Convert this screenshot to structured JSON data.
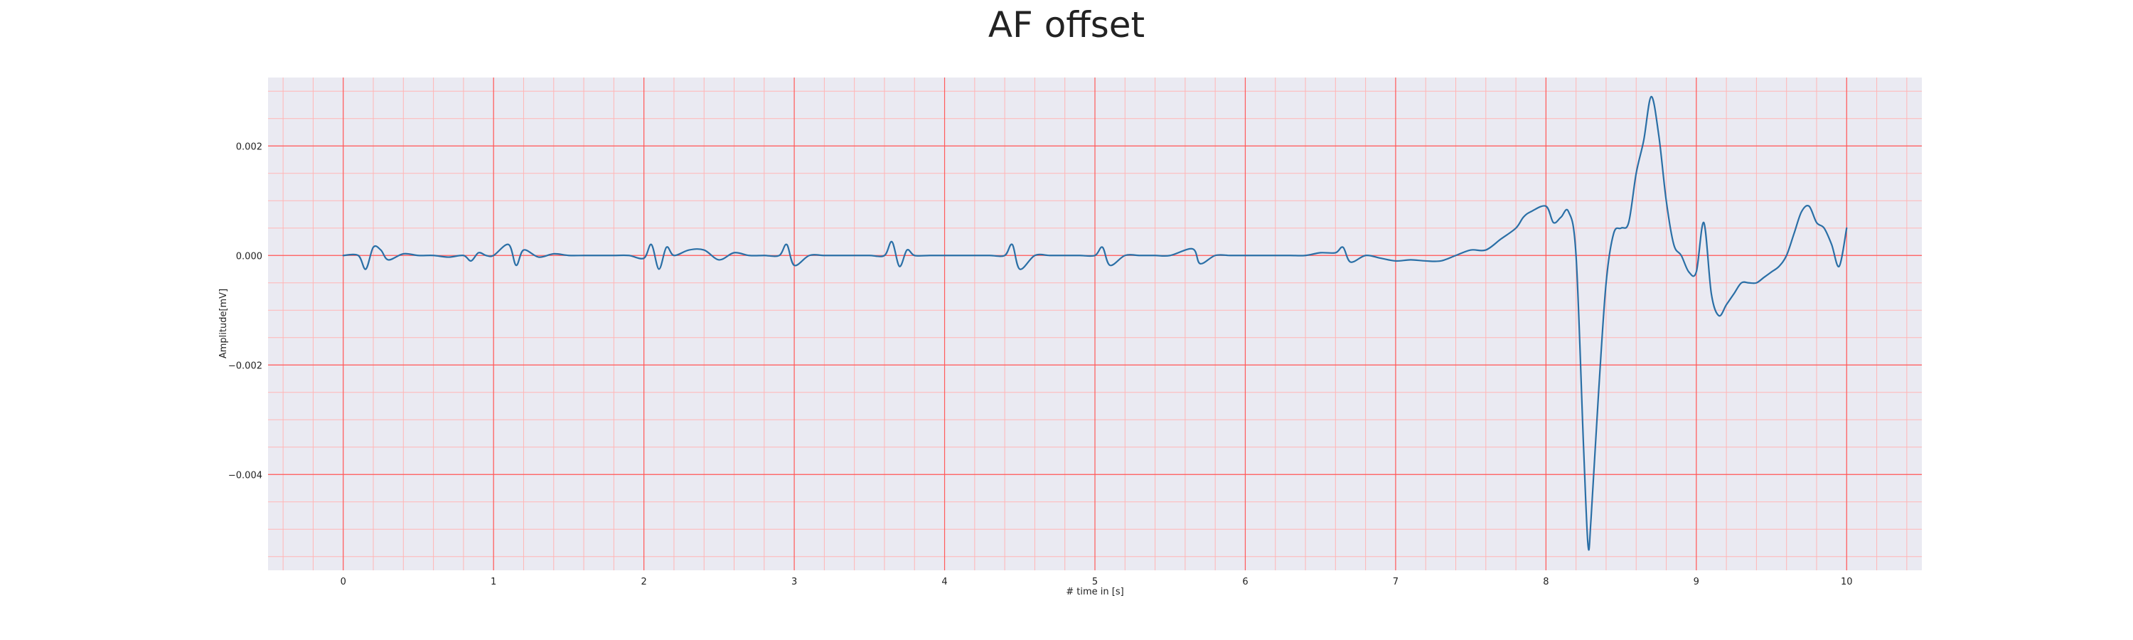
{
  "chart_data": {
    "type": "line",
    "title": "AF offset",
    "xlabel": "# time in [s]",
    "ylabel": "Amplitude[mV]",
    "xlim": [
      -0.5,
      10.5
    ],
    "ylim": [
      -0.00575,
      0.00325
    ],
    "xticks": [
      0,
      1,
      2,
      3,
      4,
      5,
      6,
      7,
      8,
      9,
      10
    ],
    "yticks": [
      -0.004,
      -0.002,
      0.0,
      0.002
    ],
    "ytick_labels": [
      "−0.004",
      "−0.002",
      "0.000",
      "0.002"
    ],
    "grid": true,
    "minor_grid": true,
    "colors": {
      "background": "#eaeaf2",
      "major_grid": "#ff5a5a",
      "minor_grid": "#ffb6b6",
      "line": "#2a6fa6"
    },
    "series": [
      {
        "values_x": [
          0,
          0.1,
          0.15,
          0.2,
          0.25,
          0.3,
          0.4,
          0.5,
          0.6,
          0.7,
          0.8,
          0.85,
          0.9,
          0.95,
          1.0,
          1.1,
          1.15,
          1.2,
          1.3,
          1.4,
          1.5,
          1.6,
          1.7,
          1.8,
          1.9,
          2.0,
          2.05,
          2.1,
          2.15,
          2.2,
          2.3,
          2.4,
          2.5,
          2.6,
          2.7,
          2.8,
          2.9,
          2.95,
          3.0,
          3.1,
          3.2,
          3.3,
          3.4,
          3.5,
          3.6,
          3.65,
          3.7,
          3.75,
          3.8,
          3.9,
          4.0,
          4.1,
          4.2,
          4.3,
          4.4,
          4.45,
          4.5,
          4.6,
          4.7,
          4.8,
          4.9,
          5.0,
          5.05,
          5.1,
          5.2,
          5.3,
          5.4,
          5.5,
          5.65,
          5.7,
          5.8,
          5.9,
          6.0,
          6.1,
          6.2,
          6.3,
          6.4,
          6.5,
          6.6,
          6.65,
          6.7,
          6.8,
          6.9,
          7.0,
          7.1,
          7.2,
          7.3,
          7.4,
          7.5,
          7.6,
          7.7,
          7.8,
          7.85,
          7.9,
          8.0,
          8.05,
          8.1,
          8.15,
          8.2,
          8.25,
          8.28,
          8.3,
          8.35,
          8.4,
          8.45,
          8.5,
          8.55,
          8.6,
          8.65,
          8.7,
          8.75,
          8.8,
          8.85,
          8.9,
          8.95,
          9.0,
          9.05,
          9.1,
          9.15,
          9.2,
          9.25,
          9.3,
          9.35,
          9.4,
          9.45,
          9.5,
          9.55,
          9.6,
          9.65,
          9.7,
          9.75,
          9.8,
          9.85,
          9.9,
          9.95,
          10.0
        ],
        "values": [
          0.0,
          0.0,
          -0.00025,
          0.00015,
          0.0001,
          -8e-05,
          3e-05,
          0.0,
          0.0,
          -3e-05,
          0.0,
          -0.0001,
          5e-05,
          0.0,
          0.0,
          0.0002,
          -0.00018,
          0.0001,
          -3e-05,
          3e-05,
          0.0,
          0.0,
          0.0,
          0.0,
          0.0,
          -5e-05,
          0.0002,
          -0.00025,
          0.00015,
          0.0,
          0.0001,
          0.0001,
          -8e-05,
          5e-05,
          0.0,
          0.0,
          0.0,
          0.0002,
          -0.00018,
          0.0,
          0.0,
          0.0,
          0.0,
          0.0,
          0.0,
          0.00025,
          -0.0002,
          0.0001,
          0.0,
          0.0,
          0.0,
          0.0,
          0.0,
          0.0,
          0.0,
          0.0002,
          -0.00025,
          0.0,
          0.0,
          0.0,
          0.0,
          0.0,
          0.00015,
          -0.00018,
          0.0,
          0.0,
          0.0,
          0.0,
          0.00012,
          -0.00015,
          0.0,
          0.0,
          0.0,
          0.0,
          0.0,
          0.0,
          0.0,
          5e-05,
          5e-05,
          0.00015,
          -0.00012,
          0.0,
          -5e-05,
          -0.0001,
          -8e-05,
          -0.0001,
          -0.0001,
          0.0,
          0.0001,
          0.0001,
          0.0003,
          0.0005,
          0.0007,
          0.0008,
          0.0009,
          0.0006,
          0.0007,
          0.0008,
          0.0,
          -0.0035,
          -0.0053,
          -0.0048,
          -0.0025,
          -0.0005,
          0.0004,
          0.0005,
          0.0006,
          0.0015,
          0.0021,
          0.0029,
          0.0022,
          0.001,
          0.0002,
          0.0,
          -0.0003,
          -0.0003,
          0.0006,
          -0.0007,
          -0.0011,
          -0.0009,
          -0.0007,
          -0.0005,
          -0.0005,
          -0.0005,
          -0.0004,
          -0.0003,
          -0.0002,
          0.0,
          0.0004,
          0.0008,
          0.0009,
          0.0006,
          0.0005,
          0.0002,
          -0.0002,
          0.0005
        ]
      }
    ]
  }
}
